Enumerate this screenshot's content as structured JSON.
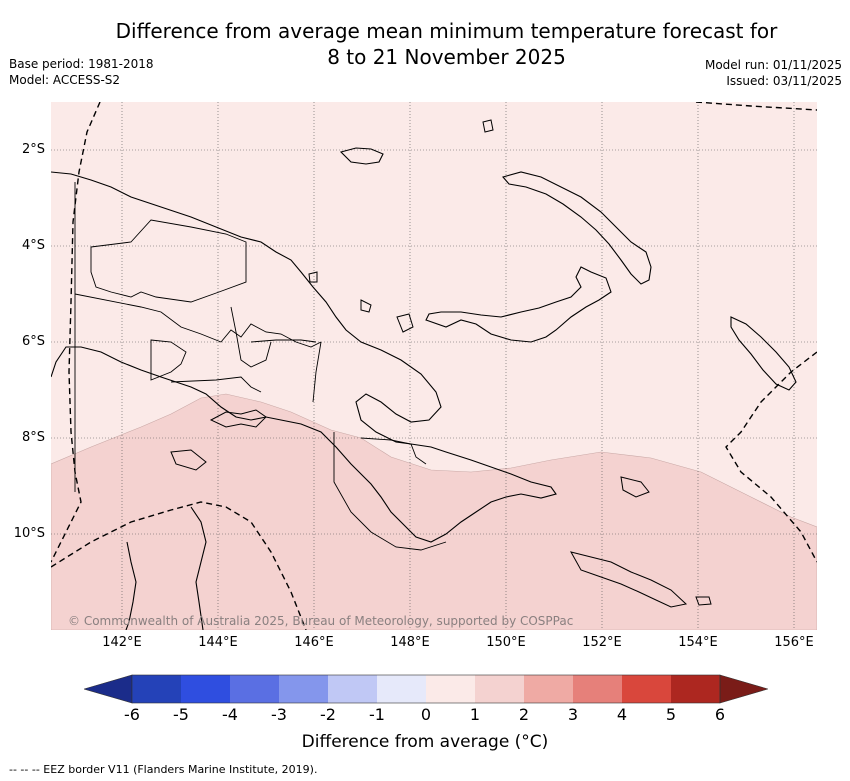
{
  "title": {
    "line1": "Difference from average mean minimum temperature forecast for",
    "line2": "8 to 21 November 2025"
  },
  "meta": {
    "base_period": "Base period: 1981-2018",
    "model": "Model: ACCESS-S2",
    "model_run": "Model run: 01/11/2025",
    "issued": "Issued: 03/11/2025"
  },
  "map": {
    "lat_labels": [
      "2°S",
      "4°S",
      "6°S",
      "8°S",
      "10°S"
    ],
    "lon_labels": [
      "142°E",
      "144°E",
      "146°E",
      "148°E",
      "150°E",
      "152°E",
      "154°E",
      "156°E"
    ],
    "copyright": "© Commonwealth of Australia 2025, Bureau of Meteorology, supported by COSPPac",
    "fill_colors": {
      "band_0_to_1": "#fbeae8",
      "band_1_to_2": "#f4d2d0"
    }
  },
  "legend": {
    "ticks": [
      "-6",
      "-5",
      "-4",
      "-3",
      "-2",
      "-1",
      "0",
      "1",
      "2",
      "3",
      "4",
      "5",
      "6"
    ],
    "colors": [
      "#1b2c8a",
      "#2442b8",
      "#2f4ee0",
      "#5a6fe3",
      "#8496ec",
      "#c0c8f5",
      "#e6e9fa",
      "#fbeae8",
      "#f4d2d0",
      "#efaaa4",
      "#e6807a",
      "#d9473c",
      "#ad2720",
      "#7a1c18"
    ],
    "title": "Difference from average (°C)"
  },
  "footnote": "--  --  -- EEZ border V11 (Flanders Marine Institute, 2019)."
}
